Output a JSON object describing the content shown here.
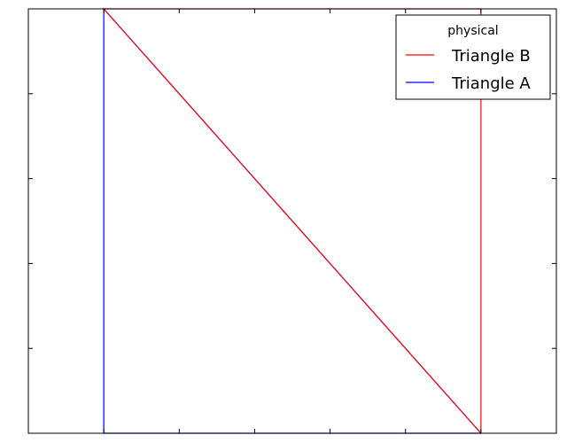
{
  "chart_data": {
    "type": "line",
    "title": "",
    "xlabel": "",
    "ylabel": "",
    "xlim": [
      -0.2,
      1.2
    ],
    "ylim": [
      0,
      1
    ],
    "x_ticks": [
      0,
      0.2,
      0.4,
      0.6,
      0.8,
      1.0
    ],
    "y_ticks": [
      0.2,
      0.4,
      0.6,
      0.8
    ],
    "grid": false,
    "legend": {
      "title": "physical",
      "placement": "top-right",
      "entries": [
        "Triangle B",
        "Triangle A"
      ]
    },
    "series": [
      {
        "name": "Triangle A",
        "color": "#0000ff",
        "x": [
          0,
          1,
          0,
          0
        ],
        "y": [
          0,
          0,
          1,
          0
        ]
      },
      {
        "name": "Triangle B",
        "color": "#ff0000",
        "x": [
          1,
          1,
          0,
          1
        ],
        "y": [
          0,
          1,
          1,
          0
        ]
      }
    ]
  }
}
